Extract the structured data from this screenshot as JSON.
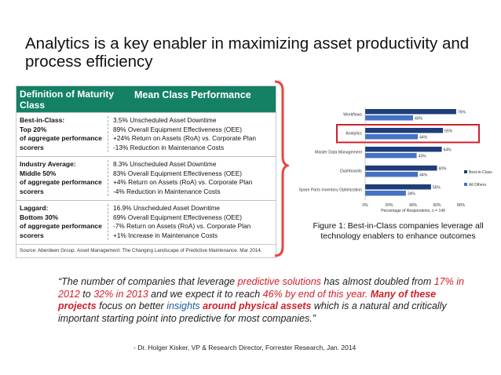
{
  "title": "Analytics is a key enabler in maximizing asset productivity and process efficiency",
  "table": {
    "header_col1": "Definition of Maturity Class",
    "header_col2": "Mean Class Performance",
    "rows": [
      {
        "label": [
          "Best-in-Class:",
          "Top 20%",
          "of aggregate performance scorers"
        ],
        "values": [
          "3.5% Unscheduled Asset Downtime",
          "89% Overall Equipment Effectiveness (OEE)",
          "+24% Return on Assets (RoA) vs. Corporate Plan",
          "-13% Reduction in Maintenance Costs"
        ]
      },
      {
        "label": [
          "Industry Average:",
          "Middle 50%",
          "of aggregate performance scorers"
        ],
        "values": [
          "8.3% Unscheduled Asset Downtime",
          "83% Overall Equipment Effectiveness (OEE)",
          "+4% Return on Assets (RoA) vs. Corporate Plan",
          "-4% Reduction in Maintenance Costs"
        ]
      },
      {
        "label": [
          "Laggard:",
          "Bottom 30%",
          "of aggregate performance scorers"
        ],
        "values": [
          "16.9% Unscheduled Asset Downtime",
          "69% Overall Equipment Effectiveness (OEE)",
          "-7% Return on Assets (RoA) vs. Corporate Plan",
          "+1% Increase in Maintenance Costs"
        ]
      }
    ],
    "source": "Source: Aberdeen Group. Asset Management: The Changing Landscape of Predictive Maintenance. Mar 2014."
  },
  "chart_data": {
    "type": "bar",
    "orientation": "horizontal",
    "categories": [
      "Workflows",
      "Analytics",
      "Master Data Management",
      "Dashboards",
      "Spare Parts Inventory Optimization"
    ],
    "series": [
      {
        "name": "Best-in-Class",
        "values": [
          76,
          65,
          64,
          60,
          55
        ],
        "color": "#1f3d7a"
      },
      {
        "name": "All Others",
        "values": [
          40,
          44,
          43,
          44,
          34
        ],
        "color": "#4472c4"
      }
    ],
    "xlabel": "Percentage of Respondents, n = 149",
    "xticks": [
      "0%",
      "20%",
      "40%",
      "60%",
      "80%"
    ],
    "xlim": [
      0,
      80
    ],
    "highlight_category": "Analytics",
    "highlight_color": "#d0202a",
    "legend": "right",
    "caption": "Figure 1: Best-in-Class companies leverage all technology enablers to enhance outcomes"
  },
  "quote": {
    "segments": [
      {
        "t": "“The number of companies that leverage ",
        "c": ""
      },
      {
        "t": "predictive solutions",
        "c": "red"
      },
      {
        "t": " has almost doubled from ",
        "c": ""
      },
      {
        "t": "17% in 2012",
        "c": "red"
      },
      {
        "t": " to ",
        "c": ""
      },
      {
        "t": "32% in 2013",
        "c": "red"
      },
      {
        "t": " and we expect it to reach ",
        "c": ""
      },
      {
        "t": "46% by end of this year.",
        "c": "red"
      },
      {
        "t": " ",
        "c": ""
      },
      {
        "t": "Many of these projects",
        "c": "redb"
      },
      {
        "t": " focus on better ",
        "c": ""
      },
      {
        "t": "insights",
        "c": "blue"
      },
      {
        "t": " ",
        "c": ""
      },
      {
        "t": "around physical assets",
        "c": "redb"
      },
      {
        "t": " which is a natural and critically important starting point into predictive for most companies.”",
        "c": ""
      }
    ],
    "attribution": "- Dr. Holger Kisker, VP & Research Director, Forrester Research, Jan. 2014"
  },
  "colors": {
    "table_header": "#148165",
    "bracket": "#e8453c"
  }
}
